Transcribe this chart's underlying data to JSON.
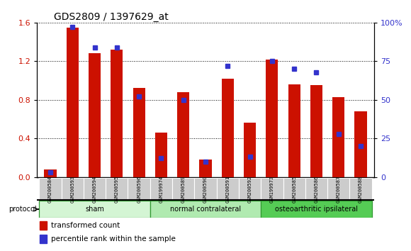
{
  "title": "GDS2809 / 1397629_at",
  "samples": [
    "GSM200584",
    "GSM200593",
    "GSM200594",
    "GSM200595",
    "GSM200596",
    "GSM199974",
    "GSM200589",
    "GSM200590",
    "GSM200591",
    "GSM200592",
    "GSM199973",
    "GSM200585",
    "GSM200586",
    "GSM200587",
    "GSM200588"
  ],
  "red_values": [
    0.08,
    1.55,
    1.28,
    1.32,
    0.92,
    0.46,
    0.88,
    0.18,
    1.02,
    0.56,
    1.22,
    0.96,
    0.95,
    0.83,
    0.68
  ],
  "blue_pct": [
    3,
    97,
    84,
    84,
    52,
    12,
    50,
    10,
    72,
    13,
    75,
    70,
    68,
    28,
    20
  ],
  "groups": [
    {
      "label": "sham",
      "start": 0,
      "end": 5,
      "color": "#d4f5d4"
    },
    {
      "label": "normal contralateral",
      "start": 5,
      "end": 10,
      "color": "#b0eab0"
    },
    {
      "label": "osteoarthritic ipsilateral",
      "start": 10,
      "end": 15,
      "color": "#55cc55"
    }
  ],
  "ylim_left": [
    0,
    1.6
  ],
  "ylim_right": [
    0,
    100
  ],
  "yticks_left": [
    0,
    0.4,
    0.8,
    1.2,
    1.6
  ],
  "yticks_right": [
    0,
    25,
    50,
    75,
    100
  ],
  "red_color": "#cc1100",
  "blue_color": "#3333cc",
  "bg_color": "#ffffff",
  "legend1": "transformed count",
  "legend2": "percentile rank within the sample"
}
